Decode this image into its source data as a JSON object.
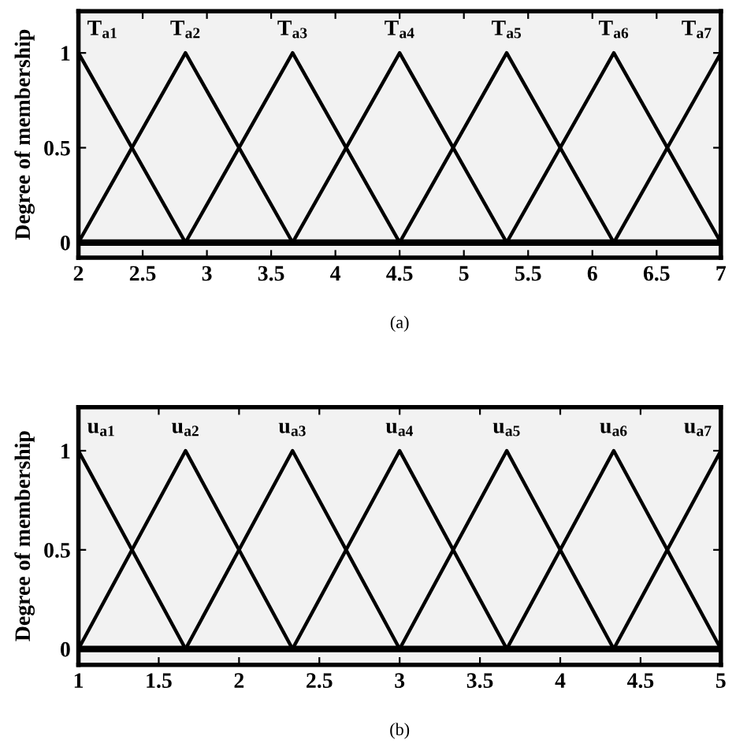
{
  "chart_data": [
    {
      "type": "line",
      "ylabel": "Degree of membership",
      "xlabel": "(a)",
      "xlim": [
        2,
        7
      ],
      "ylim": [
        -0.08,
        1.22
      ],
      "xticks": [
        2,
        2.5,
        3,
        3.5,
        4,
        4.5,
        5,
        5.5,
        6,
        6.5,
        7
      ],
      "yticks": [
        0,
        0.5,
        1
      ],
      "grid": false,
      "legend": false,
      "marker": "none",
      "line_style": "solid",
      "series": [
        {
          "color": "#000000",
          "x": [
            2,
            2.833
          ],
          "values": [
            1,
            0
          ]
        },
        {
          "color": "#000000",
          "x": [
            2,
            2.833,
            3.667
          ],
          "values": [
            0,
            1,
            0
          ]
        },
        {
          "color": "#000000",
          "x": [
            2.833,
            3.667,
            4.5
          ],
          "values": [
            0,
            1,
            0
          ]
        },
        {
          "color": "#000000",
          "x": [
            3.667,
            4.5,
            5.333
          ],
          "values": [
            0,
            1,
            0
          ]
        },
        {
          "color": "#000000",
          "x": [
            4.5,
            5.333,
            6.167
          ],
          "values": [
            0,
            1,
            0
          ]
        },
        {
          "color": "#000000",
          "x": [
            5.333,
            6.167,
            7
          ],
          "values": [
            0,
            1,
            0
          ]
        },
        {
          "color": "#000000",
          "x": [
            6.167,
            7
          ],
          "values": [
            0,
            1
          ]
        }
      ],
      "ref_lines": [
        {
          "axis": "y",
          "value": 0,
          "color": "#000000"
        }
      ],
      "annotations": [
        {
          "text": "T$_{a1}$",
          "x": 2,
          "y": 1
        },
        {
          "text": "T$_{a2}$",
          "x": 2.833,
          "y": 1
        },
        {
          "text": "T$_{a3}$",
          "x": 3.667,
          "y": 1
        },
        {
          "text": "T$_{a4}$",
          "x": 4.5,
          "y": 1
        },
        {
          "text": "T$_{a5}$",
          "x": 5.333,
          "y": 1
        },
        {
          "text": "T$_{a6}$",
          "x": 6.167,
          "y": 1
        },
        {
          "text": "T$_{a7}$",
          "x": 7,
          "y": 1
        }
      ]
    },
    {
      "type": "line",
      "ylabel": "Degree of membership",
      "xlabel": "(b)",
      "xlim": [
        1,
        5
      ],
      "ylim": [
        -0.08,
        1.22
      ],
      "xticks": [
        1,
        1.5,
        2,
        2.5,
        3,
        3.5,
        4,
        4.5,
        5
      ],
      "yticks": [
        0,
        0.5,
        1
      ],
      "grid": false,
      "legend": false,
      "marker": "none",
      "line_style": "solid",
      "series": [
        {
          "color": "#000000",
          "x": [
            1,
            1.667
          ],
          "values": [
            1,
            0
          ]
        },
        {
          "color": "#000000",
          "x": [
            1,
            1.667,
            2.333
          ],
          "values": [
            0,
            1,
            0
          ]
        },
        {
          "color": "#000000",
          "x": [
            1.667,
            2.333,
            3
          ],
          "values": [
            0,
            1,
            0
          ]
        },
        {
          "color": "#000000",
          "x": [
            2.333,
            3,
            3.667
          ],
          "values": [
            0,
            1,
            0
          ]
        },
        {
          "color": "#000000",
          "x": [
            3,
            3.667,
            4.333
          ],
          "values": [
            0,
            1,
            0
          ]
        },
        {
          "color": "#000000",
          "x": [
            3.667,
            4.333,
            5
          ],
          "values": [
            0,
            1,
            0
          ]
        },
        {
          "color": "#000000",
          "x": [
            4.333,
            5
          ],
          "values": [
            0,
            1
          ]
        }
      ],
      "ref_lines": [
        {
          "axis": "y",
          "value": 0,
          "color": "#000000"
        }
      ],
      "annotations": [
        {
          "text": "u$_{a1}$",
          "x": 1,
          "y": 1
        },
        {
          "text": "u$_{a2}$",
          "x": 1.667,
          "y": 1
        },
        {
          "text": "u$_{a3}$",
          "x": 2.333,
          "y": 1
        },
        {
          "text": "u$_{a4}$",
          "x": 3,
          "y": 1
        },
        {
          "text": "u$_{a5}$",
          "x": 3.667,
          "y": 1
        },
        {
          "text": "u$_{a6}$",
          "x": 4.333,
          "y": 1
        },
        {
          "text": "u$_{a7}$",
          "x": 5,
          "y": 1
        }
      ]
    }
  ]
}
